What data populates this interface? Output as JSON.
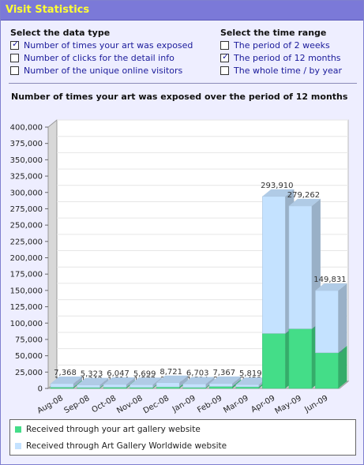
{
  "window": {
    "title": "Visit Statistics"
  },
  "data_type": {
    "heading": "Select the data type",
    "options": [
      {
        "label": "Number of times your art was exposed",
        "checked": true
      },
      {
        "label": "Number of clicks for the detail info",
        "checked": false
      },
      {
        "label": "Number of the unique online visitors",
        "checked": false
      }
    ]
  },
  "time_range": {
    "heading": "Select the time range",
    "options": [
      {
        "label": "The period of 2 weeks",
        "checked": false
      },
      {
        "label": "The period of 12 months",
        "checked": true
      },
      {
        "label": "The whole time / by year",
        "checked": false
      }
    ]
  },
  "chart_heading": "Number of times your art was exposed over the period of 12 months",
  "chart_data": {
    "type": "bar",
    "stacked": true,
    "categories": [
      "Aug-08",
      "Sep-08",
      "Oct-08",
      "Nov-08",
      "Dec-08",
      "Jan-09",
      "Feb-09",
      "Mar-09",
      "Apr-09",
      "May-09",
      "Jun-09"
    ],
    "series": [
      {
        "name": "Received through your art gallery website",
        "color": "#44dd88",
        "values": [
          1884,
          1342,
          1814,
          1577,
          2278,
          1534,
          2991,
          2458,
          84089,
          91256,
          54535
        ]
      },
      {
        "name": "Received through Art Gallery Worldwide website",
        "color": "#c4e2ff",
        "values": [
          5484,
          3981,
          4233,
          4122,
          6443,
          5169,
          4376,
          3361,
          209821,
          188006,
          95296
        ]
      }
    ],
    "totals": [
      7368,
      5323,
      6047,
      5699,
      8721,
      6703,
      7367,
      5819,
      293910,
      279262,
      149831
    ],
    "yticks": [
      "0",
      "25,000",
      "50,000",
      "75,000",
      "100,000",
      "125,000",
      "150,000",
      "175,000",
      "200,000",
      "225,000",
      "250,000",
      "275,000",
      "300,000",
      "325,000",
      "350,000",
      "375,000",
      "400,000"
    ],
    "ylim": [
      0,
      400000
    ],
    "grid": true,
    "legend_position": "bottom"
  }
}
